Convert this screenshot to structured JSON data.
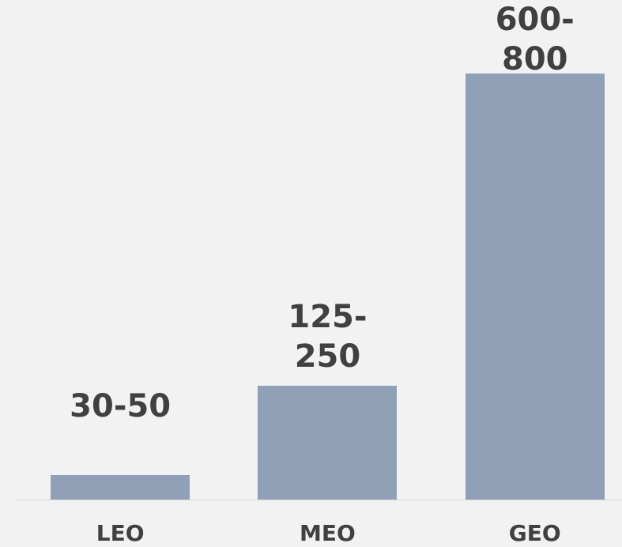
{
  "chart_data": {
    "type": "bar",
    "categories": [
      "LEO",
      "MEO",
      "GEO"
    ],
    "values": [
      40,
      187.5,
      700
    ],
    "value_labels": [
      "30-50",
      "125-250",
      "600-800"
    ],
    "color": "#8fa0b7"
  }
}
